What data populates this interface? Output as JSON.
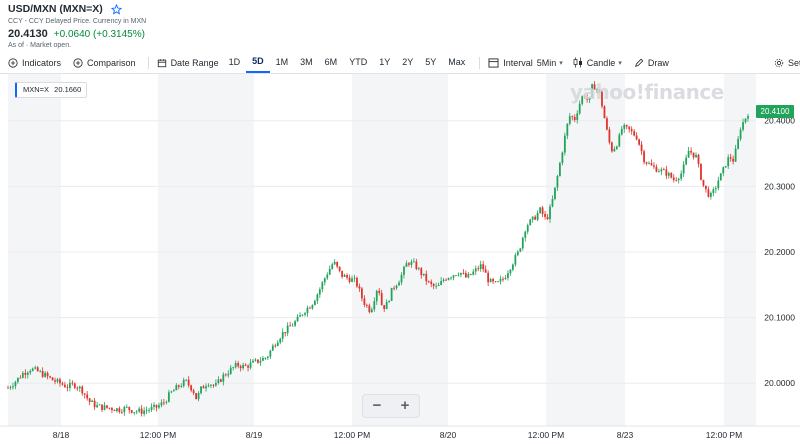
{
  "quote": {
    "title": "USD/MXN (MXN=X)",
    "subtitle": "CCY - CCY Delayed Price. Currency in MXN",
    "price": "20.4130",
    "change": "+0.0640 (+0.3145%)",
    "market_status": "As of  · Market open.",
    "icon_star": "star-icon"
  },
  "toolbar": {
    "indicators_label": "Indicators",
    "comparison_label": "Comparison",
    "date_range_label": "Date Range",
    "ranges": [
      "1D",
      "5D",
      "1M",
      "3M",
      "6M",
      "YTD",
      "1Y",
      "2Y",
      "5Y",
      "Max"
    ],
    "active_range": "5D",
    "interval_label": "Interval",
    "interval_value": "5Min",
    "chart_type_label": "Candle",
    "draw_label": "Draw",
    "settings_label": "Settings"
  },
  "chart": {
    "legend_symbol": "MXN=X",
    "legend_value": "20.1660",
    "watermark": "yahoo!finance",
    "last_price_tag": "20.4100",
    "zoom_out": "−",
    "zoom_in": "+"
  },
  "chart_data": {
    "type": "candlestick",
    "x_tick_labels": [
      "8/18",
      "12:00 PM",
      "8/19",
      "12:00 PM",
      "8/20",
      "12:00 PM",
      "8/23",
      "12:00 PM"
    ],
    "y_tick_labels": [
      "20.0000",
      "20.1000",
      "20.2000",
      "20.3000",
      "20.4000"
    ],
    "y_ticks": [
      20.0,
      20.1,
      20.2,
      20.3,
      20.4
    ],
    "ylim": [
      19.947,
      20.462
    ],
    "up_color": "#21a35a",
    "down_color": "#e0332c",
    "series": [
      {
        "name": "MXN=X",
        "path": [
          [
            0.0,
            19.993
          ],
          [
            0.012,
            20.005
          ],
          [
            0.02,
            20.015
          ],
          [
            0.03,
            20.022
          ],
          [
            0.04,
            20.018
          ],
          [
            0.05,
            20.012
          ],
          [
            0.06,
            20.005
          ],
          [
            0.07,
            20.0
          ],
          [
            0.08,
            19.995
          ],
          [
            0.09,
            19.998
          ],
          [
            0.1,
            19.99
          ],
          [
            0.11,
            19.972
          ],
          [
            0.12,
            19.965
          ],
          [
            0.13,
            19.963
          ],
          [
            0.14,
            19.962
          ],
          [
            0.15,
            19.96
          ],
          [
            0.16,
            19.962
          ],
          [
            0.17,
            19.958
          ],
          [
            0.18,
            19.957
          ],
          [
            0.19,
            19.96
          ],
          [
            0.2,
            19.963
          ],
          [
            0.21,
            19.97
          ],
          [
            0.22,
            19.985
          ],
          [
            0.23,
            19.995
          ],
          [
            0.24,
            20.003
          ],
          [
            0.25,
            19.99
          ],
          [
            0.255,
            19.975
          ],
          [
            0.26,
            19.99
          ],
          [
            0.27,
            20.002
          ],
          [
            0.28,
            19.995
          ],
          [
            0.29,
            20.01
          ],
          [
            0.3,
            20.02
          ],
          [
            0.31,
            20.028
          ],
          [
            0.32,
            20.025
          ],
          [
            0.33,
            20.03
          ],
          [
            0.34,
            20.035
          ],
          [
            0.35,
            20.04
          ],
          [
            0.36,
            20.06
          ],
          [
            0.37,
            20.075
          ],
          [
            0.38,
            20.085
          ],
          [
            0.39,
            20.095
          ],
          [
            0.4,
            20.11
          ],
          [
            0.41,
            20.12
          ],
          [
            0.42,
            20.14
          ],
          [
            0.43,
            20.165
          ],
          [
            0.44,
            20.185
          ],
          [
            0.45,
            20.165
          ],
          [
            0.46,
            20.16
          ],
          [
            0.47,
            20.155
          ],
          [
            0.48,
            20.125
          ],
          [
            0.49,
            20.11
          ],
          [
            0.5,
            20.15
          ],
          [
            0.505,
            20.12
          ],
          [
            0.51,
            20.115
          ],
          [
            0.52,
            20.145
          ],
          [
            0.53,
            20.16
          ],
          [
            0.54,
            20.185
          ],
          [
            0.55,
            20.18
          ],
          [
            0.56,
            20.165
          ],
          [
            0.57,
            20.15
          ],
          [
            0.58,
            20.145
          ],
          [
            0.59,
            20.16
          ],
          [
            0.6,
            20.165
          ],
          [
            0.61,
            20.17
          ],
          [
            0.62,
            20.16
          ],
          [
            0.63,
            20.17
          ],
          [
            0.64,
            20.18
          ],
          [
            0.65,
            20.155
          ],
          [
            0.66,
            20.15
          ],
          [
            0.67,
            20.16
          ],
          [
            0.68,
            20.18
          ],
          [
            0.69,
            20.2
          ],
          [
            0.7,
            20.24
          ],
          [
            0.71,
            20.25
          ],
          [
            0.72,
            20.265
          ],
          [
            0.725,
            20.25
          ],
          [
            0.73,
            20.255
          ],
          [
            0.735,
            20.275
          ],
          [
            0.74,
            20.3
          ],
          [
            0.75,
            20.36
          ],
          [
            0.755,
            20.39
          ],
          [
            0.76,
            20.41
          ],
          [
            0.765,
            20.4
          ],
          [
            0.77,
            20.418
          ],
          [
            0.775,
            20.435
          ],
          [
            0.78,
            20.44
          ],
          [
            0.785,
            20.425
          ],
          [
            0.79,
            20.455
          ],
          [
            0.795,
            20.45
          ],
          [
            0.8,
            20.44
          ],
          [
            0.81,
            20.38
          ],
          [
            0.815,
            20.355
          ],
          [
            0.82,
            20.36
          ],
          [
            0.825,
            20.37
          ],
          [
            0.83,
            20.39
          ],
          [
            0.84,
            20.385
          ],
          [
            0.85,
            20.375
          ],
          [
            0.86,
            20.34
          ],
          [
            0.87,
            20.33
          ],
          [
            0.88,
            20.325
          ],
          [
            0.89,
            20.32
          ],
          [
            0.9,
            20.31
          ],
          [
            0.91,
            20.32
          ],
          [
            0.915,
            20.335
          ],
          [
            0.92,
            20.355
          ],
          [
            0.925,
            20.35
          ],
          [
            0.93,
            20.345
          ],
          [
            0.935,
            20.32
          ],
          [
            0.94,
            20.3
          ],
          [
            0.945,
            20.29
          ],
          [
            0.95,
            20.285
          ],
          [
            0.955,
            20.295
          ],
          [
            0.96,
            20.31
          ],
          [
            0.965,
            20.32
          ],
          [
            0.97,
            20.335
          ],
          [
            0.975,
            20.345
          ],
          [
            0.98,
            20.34
          ],
          [
            0.985,
            20.36
          ],
          [
            0.99,
            20.39
          ],
          [
            1.0,
            20.412
          ]
        ]
      }
    ]
  }
}
